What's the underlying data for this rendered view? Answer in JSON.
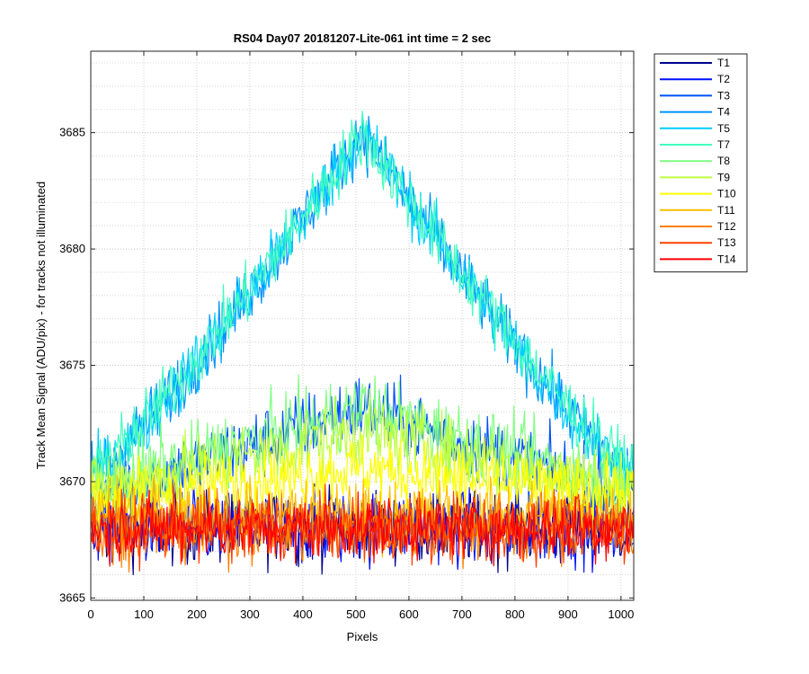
{
  "chart_data": {
    "type": "line",
    "title": "RS04 Day07 20181207-Lite-061 int time = 2 sec",
    "xlabel": "Pixels",
    "ylabel": "Track Mean Signal (ADU/pix) - for tracks not illuminated",
    "xlim": [
      0,
      1024
    ],
    "ylim": [
      3664.9,
      3688.5
    ],
    "xticks": [
      0,
      100,
      200,
      300,
      400,
      500,
      600,
      700,
      800,
      900,
      1000
    ],
    "yticks": [
      3665,
      3670,
      3675,
      3680,
      3685
    ],
    "grid": "minor-y dotted, major dotted",
    "legend": "outside-top-right",
    "series": [
      {
        "name": "T1",
        "color": "#00008f",
        "shape": "flat",
        "base": 3668.0,
        "peak": 0,
        "noise": 1.4
      },
      {
        "name": "T2",
        "color": "#0010ff",
        "shape": "flat",
        "base": 3668.0,
        "peak": 0,
        "noise": 1.4
      },
      {
        "name": "T3",
        "color": "#0050ff",
        "shape": "bump",
        "base": 3669.6,
        "peak": 3.6,
        "noise": 1.4
      },
      {
        "name": "T4",
        "color": "#0090ff",
        "shape": "bump",
        "base": 3670.4,
        "peak": 14.6,
        "noise": 1.2
      },
      {
        "name": "T5",
        "color": "#00cfff",
        "shape": "bump",
        "base": 3670.4,
        "peak": 14.6,
        "noise": 1.2
      },
      {
        "name": "T7",
        "color": "#40ffbf",
        "shape": "bump",
        "base": 3670.6,
        "peak": 14.4,
        "noise": 1.2
      },
      {
        "name": "T8",
        "color": "#80ff80",
        "shape": "bump",
        "base": 3670.0,
        "peak": 3.2,
        "noise": 1.4
      },
      {
        "name": "T9",
        "color": "#bfff40",
        "shape": "bump",
        "base": 3669.8,
        "peak": 2.4,
        "noise": 1.4
      },
      {
        "name": "T10",
        "color": "#ffff00",
        "shape": "bump",
        "base": 3669.4,
        "peak": 1.2,
        "noise": 1.3
      },
      {
        "name": "T11",
        "color": "#ffbf00",
        "shape": "flat",
        "base": 3668.6,
        "peak": 0,
        "noise": 1.3
      },
      {
        "name": "T12",
        "color": "#ff8000",
        "shape": "flat",
        "base": 3668.0,
        "peak": 0,
        "noise": 1.3
      },
      {
        "name": "T13",
        "color": "#ff4000",
        "shape": "flat",
        "base": 3668.0,
        "peak": 0,
        "noise": 1.3
      },
      {
        "name": "T14",
        "color": "#ff0000",
        "shape": "flat",
        "base": 3668.0,
        "peak": 0,
        "noise": 1.2
      }
    ]
  }
}
